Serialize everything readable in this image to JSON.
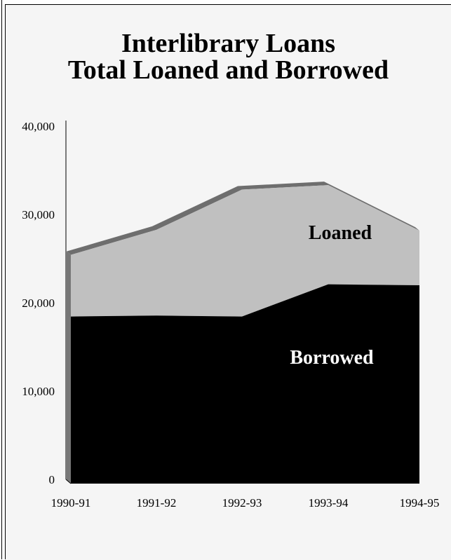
{
  "chart_data": {
    "type": "area",
    "stacked": true,
    "title": "Interlibrary Loans",
    "subtitle": "Total Loaned and Borrowed",
    "categories": [
      "1990-91",
      "1991-92",
      "1992-93",
      "1993-94",
      "1994-95"
    ],
    "series": [
      {
        "name": "Borrowed",
        "values": [
          18700,
          18800,
          18700,
          22300,
          22200
        ],
        "color": "#000000",
        "label_color": "#ffffff"
      },
      {
        "name": "Loaned",
        "values": [
          6900,
          9600,
          14200,
          11100,
          6100
        ],
        "color": "#c0c0c0",
        "label_color": "#000000"
      }
    ],
    "y_ticks": [
      "40,000",
      "30,000",
      "20,000",
      "10,000",
      "0"
    ],
    "ylim": [
      0,
      40000
    ],
    "grid": false,
    "legend": "none"
  }
}
